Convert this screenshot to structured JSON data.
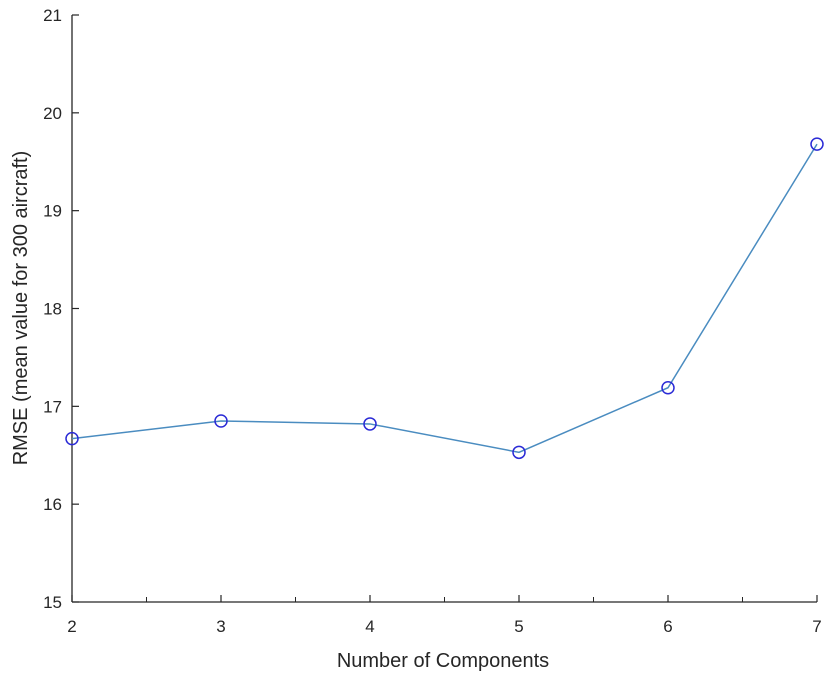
{
  "chart_data": {
    "type": "line",
    "title": "",
    "xlabel": "Number of Components",
    "ylabel": "RMSE (mean value for 300 aircraft)",
    "xlim": [
      2,
      7
    ],
    "ylim": [
      15,
      21
    ],
    "xticks": [
      2,
      3,
      4,
      5,
      6,
      7
    ],
    "yticks": [
      15,
      16,
      17,
      18,
      19,
      20,
      21
    ],
    "x_minor_ticks": [
      2.5,
      3.5,
      4.5,
      5.5,
      6.5
    ],
    "grid": false,
    "marker": "circle",
    "series": [
      {
        "x": [
          2,
          3,
          4,
          5,
          6,
          7
        ],
        "values": [
          16.67,
          16.85,
          16.82,
          16.53,
          17.19,
          19.68
        ],
        "line_color": "#4a8cc0",
        "marker_color": "#2b2bd6"
      }
    ]
  }
}
